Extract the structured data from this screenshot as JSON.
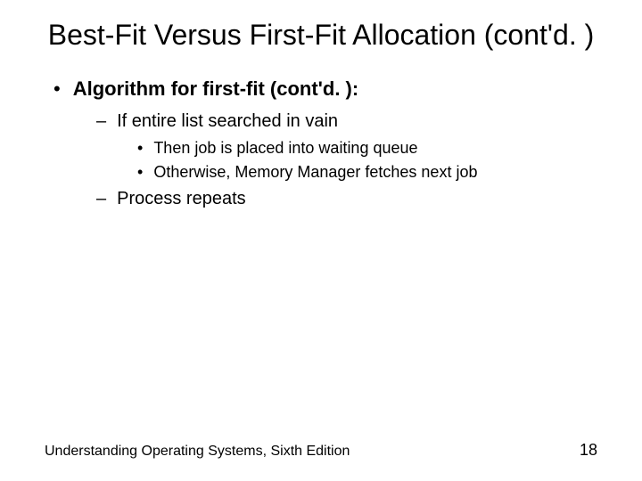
{
  "colors": {
    "background": "#ffffff",
    "text": "#000000"
  },
  "typography": {
    "title_fontsize": 32,
    "l1_fontsize": 22,
    "l2_fontsize": 20,
    "l3_fontsize": 18,
    "footer_fontsize": 16,
    "page_fontsize": 18,
    "font_family": "Arial"
  },
  "title": "Best-Fit Versus First-Fit Allocation (cont'd. )",
  "bullets": {
    "l1_marker": "•",
    "l1_text": "Algorithm for first-fit (cont'd. ):",
    "l2a_marker": "–",
    "l2a_text": "If entire list searched in vain",
    "l3a_marker": "•",
    "l3a_text": "Then job is placed into waiting queue",
    "l3b_marker": "•",
    "l3b_text": "Otherwise, Memory Manager fetches next job",
    "l2b_marker": "–",
    "l2b_text": "Process repeats"
  },
  "footer": {
    "text": "Understanding Operating Systems, Sixth Edition",
    "page": "18"
  }
}
